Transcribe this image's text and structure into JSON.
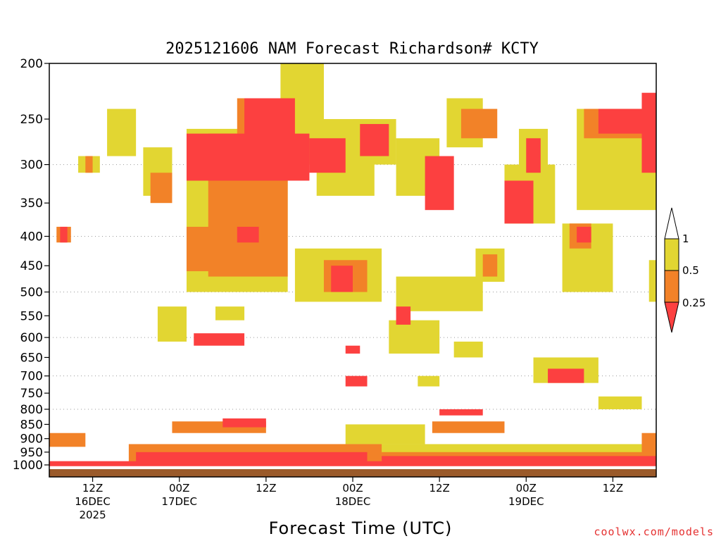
{
  "chart_data": {
    "type": "heatmap",
    "title": "2025121606 NAM Forecast Richardson# KCTY",
    "xlabel": "Forecast Time (UTC)",
    "y_axis": {
      "scale": "pressure (log)",
      "range": [
        1000,
        200
      ],
      "ticks": [
        "200",
        "250",
        "300",
        "350",
        "400",
        "450",
        "500",
        "550",
        "600",
        "650",
        "700",
        "750",
        "800",
        "850",
        "900",
        "950",
        "1000"
      ],
      "dotted_gridlines_at": [
        300,
        400,
        500,
        600,
        700,
        800
      ]
    },
    "x_axis": {
      "range_hours": [
        0,
        84
      ],
      "ticks": [
        {
          "hour": 6,
          "line1": "12Z",
          "line2": "16DEC",
          "line3": "2025"
        },
        {
          "hour": 18,
          "line1": "00Z",
          "line2": "17DEC",
          "line3": ""
        },
        {
          "hour": 30,
          "line1": "12Z",
          "line2": "",
          "line3": ""
        },
        {
          "hour": 42,
          "line1": "00Z",
          "line2": "18DEC",
          "line3": ""
        },
        {
          "hour": 54,
          "line1": "12Z",
          "line2": "",
          "line3": ""
        },
        {
          "hour": 66,
          "line1": "00Z",
          "line2": "19DEC",
          "line3": ""
        },
        {
          "hour": 78,
          "line1": "12Z",
          "line2": "",
          "line3": ""
        }
      ]
    },
    "legend": {
      "placement": "right",
      "labels": [
        "1",
        "0.5",
        "0.25"
      ],
      "colors": {
        "lt_0.25": "#fc4040",
        "0.25_to_0.5": "#f28228",
        "0.5_to_1": "#e2d632",
        "ge_1": "#ffffff"
      }
    },
    "ground_color": "#9a5a2a",
    "regions": [
      {
        "level": 0.5,
        "hour": [
          19,
          33
        ],
        "p": [
          260,
          500
        ]
      },
      {
        "level": 0.25,
        "hour": [
          22,
          33
        ],
        "p": [
          265,
          470
        ]
      },
      {
        "level": 0,
        "hour": [
          19,
          36
        ],
        "p": [
          265,
          320
        ]
      },
      {
        "level": 0.5,
        "hour": [
          32,
          38
        ],
        "p": [
          200,
          300
        ]
      },
      {
        "level": 0.25,
        "hour": [
          26,
          31
        ],
        "p": [
          230,
          300
        ]
      },
      {
        "level": 0,
        "hour": [
          27,
          34
        ],
        "p": [
          230,
          290
        ]
      },
      {
        "level": 0.5,
        "hour": [
          37,
          45
        ],
        "p": [
          250,
          340
        ]
      },
      {
        "level": 0,
        "hour": [
          36,
          41
        ],
        "p": [
          270,
          310
        ]
      },
      {
        "level": 0.5,
        "hour": [
          42,
          48
        ],
        "p": [
          250,
          300
        ]
      },
      {
        "level": 0,
        "hour": [
          43,
          47
        ],
        "p": [
          255,
          290
        ]
      },
      {
        "level": 0.5,
        "hour": [
          48,
          54
        ],
        "p": [
          270,
          340
        ]
      },
      {
        "level": 0,
        "hour": [
          52,
          56
        ],
        "p": [
          290,
          360
        ]
      },
      {
        "level": 0.5,
        "hour": [
          55,
          60
        ],
        "p": [
          230,
          280
        ]
      },
      {
        "level": 0.25,
        "hour": [
          57,
          62
        ],
        "p": [
          240,
          270
        ]
      },
      {
        "level": 0.5,
        "hour": [
          63,
          70
        ],
        "p": [
          300,
          380
        ]
      },
      {
        "level": 0,
        "hour": [
          63,
          67
        ],
        "p": [
          320,
          380
        ]
      },
      {
        "level": 0.5,
        "hour": [
          65,
          69
        ],
        "p": [
          260,
          320
        ]
      },
      {
        "level": 0,
        "hour": [
          66,
          68
        ],
        "p": [
          270,
          310
        ]
      },
      {
        "level": 0.5,
        "hour": [
          73,
          84
        ],
        "p": [
          240,
          360
        ]
      },
      {
        "level": 0.25,
        "hour": [
          74,
          84
        ],
        "p": [
          240,
          270
        ]
      },
      {
        "level": 0,
        "hour": [
          76,
          84
        ],
        "p": [
          240,
          265
        ]
      },
      {
        "level": 0,
        "hour": [
          82,
          84
        ],
        "p": [
          225,
          310
        ]
      },
      {
        "level": 0.25,
        "hour": [
          1,
          3
        ],
        "p": [
          385,
          410
        ]
      },
      {
        "level": 0,
        "hour": [
          1.5,
          2.5
        ],
        "p": [
          385,
          410
        ]
      },
      {
        "level": 0.5,
        "hour": [
          4,
          7
        ],
        "p": [
          290,
          310
        ]
      },
      {
        "level": 0.25,
        "hour": [
          5,
          6
        ],
        "p": [
          290,
          310
        ]
      },
      {
        "level": 0.5,
        "hour": [
          8,
          12
        ],
        "p": [
          240,
          290
        ]
      },
      {
        "level": 0.5,
        "hour": [
          13,
          17
        ],
        "p": [
          280,
          340
        ]
      },
      {
        "level": 0.25,
        "hour": [
          14,
          17
        ],
        "p": [
          310,
          350
        ]
      },
      {
        "level": 0.25,
        "hour": [
          19,
          26
        ],
        "p": [
          385,
          460
        ]
      },
      {
        "level": 0,
        "hour": [
          26,
          29
        ],
        "p": [
          385,
          410
        ]
      },
      {
        "level": 0.5,
        "hour": [
          34,
          46
        ],
        "p": [
          420,
          520
        ]
      },
      {
        "level": 0.25,
        "hour": [
          38,
          44
        ],
        "p": [
          440,
          500
        ]
      },
      {
        "level": 0,
        "hour": [
          39,
          42
        ],
        "p": [
          450,
          500
        ]
      },
      {
        "level": 0.5,
        "hour": [
          48,
          60
        ],
        "p": [
          470,
          540
        ]
      },
      {
        "level": 0.5,
        "hour": [
          59,
          63
        ],
        "p": [
          420,
          480
        ]
      },
      {
        "level": 0.25,
        "hour": [
          60,
          62
        ],
        "p": [
          430,
          470
        ]
      },
      {
        "level": 0.5,
        "hour": [
          71,
          78
        ],
        "p": [
          380,
          500
        ]
      },
      {
        "level": 0.25,
        "hour": [
          72,
          75
        ],
        "p": [
          380,
          420
        ]
      },
      {
        "level": 0,
        "hour": [
          73,
          75
        ],
        "p": [
          385,
          410
        ]
      },
      {
        "level": 0.5,
        "hour": [
          83,
          84
        ],
        "p": [
          440,
          520
        ]
      },
      {
        "level": 0.5,
        "hour": [
          15,
          19
        ],
        "p": [
          530,
          610
        ]
      },
      {
        "level": 0,
        "hour": [
          20,
          27
        ],
        "p": [
          590,
          620
        ]
      },
      {
        "level": 0.5,
        "hour": [
          23,
          27
        ],
        "p": [
          530,
          560
        ]
      },
      {
        "level": 0.5,
        "hour": [
          47,
          54
        ],
        "p": [
          560,
          640
        ]
      },
      {
        "level": 0,
        "hour": [
          48,
          50
        ],
        "p": [
          530,
          570
        ]
      },
      {
        "level": 0.5,
        "hour": [
          56,
          60
        ],
        "p": [
          610,
          650
        ]
      },
      {
        "level": 0,
        "hour": [
          41,
          43
        ],
        "p": [
          620,
          640
        ]
      },
      {
        "level": 0,
        "hour": [
          41,
          44
        ],
        "p": [
          700,
          730
        ]
      },
      {
        "level": 0.5,
        "hour": [
          51,
          54
        ],
        "p": [
          700,
          730
        ]
      },
      {
        "level": 0.5,
        "hour": [
          67,
          76
        ],
        "p": [
          650,
          720
        ]
      },
      {
        "level": 0,
        "hour": [
          69,
          74
        ],
        "p": [
          680,
          720
        ]
      },
      {
        "level": 0.25,
        "hour": [
          17,
          30
        ],
        "p": [
          840,
          880
        ]
      },
      {
        "level": 0,
        "hour": [
          24,
          30
        ],
        "p": [
          830,
          860
        ]
      },
      {
        "level": 0.5,
        "hour": [
          41,
          52
        ],
        "p": [
          850,
          920
        ]
      },
      {
        "level": 0.25,
        "hour": [
          53,
          63
        ],
        "p": [
          840,
          880
        ]
      },
      {
        "level": 0,
        "hour": [
          54,
          60
        ],
        "p": [
          800,
          820
        ]
      },
      {
        "level": 0.5,
        "hour": [
          76,
          82
        ],
        "p": [
          760,
          800
        ]
      },
      {
        "level": 0.25,
        "hour": [
          0,
          5
        ],
        "p": [
          880,
          930
        ]
      },
      {
        "level": 0.25,
        "hour": [
          11,
          46
        ],
        "p": [
          920,
          990
        ]
      },
      {
        "level": 0,
        "hour": [
          12,
          44
        ],
        "p": [
          950,
          990
        ]
      },
      {
        "level": 0.5,
        "hour": [
          40,
          84
        ],
        "p": [
          920,
          980
        ]
      },
      {
        "level": 0,
        "hour": [
          46,
          84
        ],
        "p": [
          965,
          995
        ]
      },
      {
        "level": 0.25,
        "hour": [
          46,
          84
        ],
        "p": [
          950,
          970
        ]
      },
      {
        "level": 0,
        "hour": [
          0,
          84
        ],
        "p": [
          985,
          1005
        ]
      },
      {
        "level": 0.25,
        "hour": [
          82,
          84
        ],
        "p": [
          880,
          1000
        ]
      }
    ]
  }
}
